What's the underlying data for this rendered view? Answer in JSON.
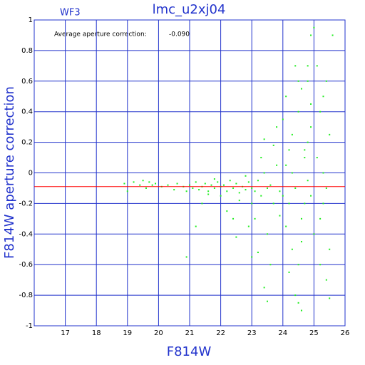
{
  "chart_data": {
    "type": "scatter",
    "title": "lmc_u2xj04",
    "subtitle": "WF3",
    "annotation": {
      "text": "Average aperture correction:",
      "value": -0.09,
      "label": "-0.090",
      "color": "#ff0000"
    },
    "x_label": "F814W",
    "y_label": "F814W aperture correction",
    "xlim": [
      16,
      26
    ],
    "ylim": [
      -1,
      1
    ],
    "xticks": [
      17,
      18,
      19,
      20,
      21,
      22,
      23,
      24,
      25,
      26
    ],
    "yticks": [
      -1,
      -0.8,
      -0.6,
      -0.4,
      -0.2,
      0,
      0.2,
      0.4,
      0.6,
      0.8,
      1
    ],
    "grid": true,
    "series": [
      {
        "color": "#22ee22",
        "x": [
          18.9,
          19.0,
          19.2,
          19.4,
          19.5,
          19.6,
          19.7,
          19.8,
          19.9,
          20.1,
          20.3,
          20.5,
          20.6,
          20.8,
          20.9,
          21.0,
          21.1,
          21.2,
          21.3,
          21.4,
          21.5,
          21.6,
          21.7,
          21.8,
          21.9,
          22.0,
          21.2,
          21.4,
          21.6,
          21.8,
          22.0,
          22.1,
          22.2,
          22.3,
          22.4,
          22.5,
          22.6,
          22.7,
          22.8,
          22.9,
          23.0,
          22.2,
          22.4,
          22.6,
          22.8,
          23.0,
          22.5,
          22.9,
          23.1,
          23.2,
          23.3,
          23.4,
          23.5,
          23.6,
          23.7,
          23.8,
          23.9,
          24.0,
          23.1,
          23.3,
          23.5,
          23.7,
          23.9,
          23.2,
          23.4,
          23.6,
          23.8,
          23.0,
          23.5,
          24.1,
          24.2,
          24.3,
          24.4,
          24.5,
          24.6,
          24.7,
          24.8,
          24.9,
          25.0,
          24.1,
          24.3,
          24.5,
          24.7,
          24.9,
          24.2,
          24.4,
          24.6,
          24.8,
          24.0,
          24.1,
          24.3,
          24.5,
          24.7,
          24.9,
          24.2,
          24.6,
          25.1,
          25.2,
          25.3,
          25.4,
          25.5,
          25.1,
          25.2,
          25.3,
          25.4,
          25.5,
          25.0,
          25.2,
          25.4,
          25.6,
          24.4,
          24.6,
          24.8,
          25.3,
          24.9,
          20.9,
          23.4,
          24.5,
          25.5,
          24.8
        ],
        "values": [
          -0.07,
          -0.12,
          -0.06,
          -0.08,
          -0.05,
          -0.1,
          -0.06,
          -0.08,
          -0.07,
          -0.09,
          -0.08,
          -0.11,
          -0.07,
          -0.09,
          -0.12,
          -0.08,
          -0.1,
          -0.06,
          -0.11,
          -0.09,
          -0.07,
          -0.12,
          -0.08,
          -0.1,
          -0.06,
          -0.09,
          -0.35,
          -0.2,
          -0.14,
          -0.04,
          -0.15,
          -0.08,
          -0.12,
          -0.05,
          -0.1,
          -0.07,
          -0.13,
          -0.09,
          -0.11,
          -0.06,
          -0.1,
          -0.25,
          -0.3,
          -0.18,
          -0.02,
          -0.2,
          -0.42,
          -0.35,
          -0.12,
          -0.05,
          -0.15,
          0.0,
          -0.1,
          -0.08,
          -0.2,
          0.05,
          -0.12,
          -0.15,
          -0.3,
          0.1,
          -0.4,
          0.18,
          -0.28,
          -0.52,
          0.22,
          -0.6,
          0.3,
          -0.55,
          -0.84,
          0.05,
          -0.2,
          0.25,
          -0.1,
          0.4,
          -0.3,
          0.15,
          -0.05,
          0.3,
          -0.4,
          0.5,
          -0.5,
          0.6,
          -0.2,
          0.45,
          -0.65,
          0.7,
          -0.45,
          0.2,
          0.35,
          -0.35,
          0.0,
          -0.6,
          0.1,
          -0.15,
          0.15,
          0.55,
          0.1,
          -0.3,
          0.5,
          -0.1,
          0.25,
          0.7,
          -0.6,
          0.0,
          0.6,
          -0.5,
          0.95,
          0.4,
          -0.7,
          0.9,
          -0.8,
          -0.9,
          0.6,
          -0.2,
          0.9,
          -0.55,
          -0.75,
          -0.85,
          -0.82,
          0.7
        ]
      }
    ]
  }
}
